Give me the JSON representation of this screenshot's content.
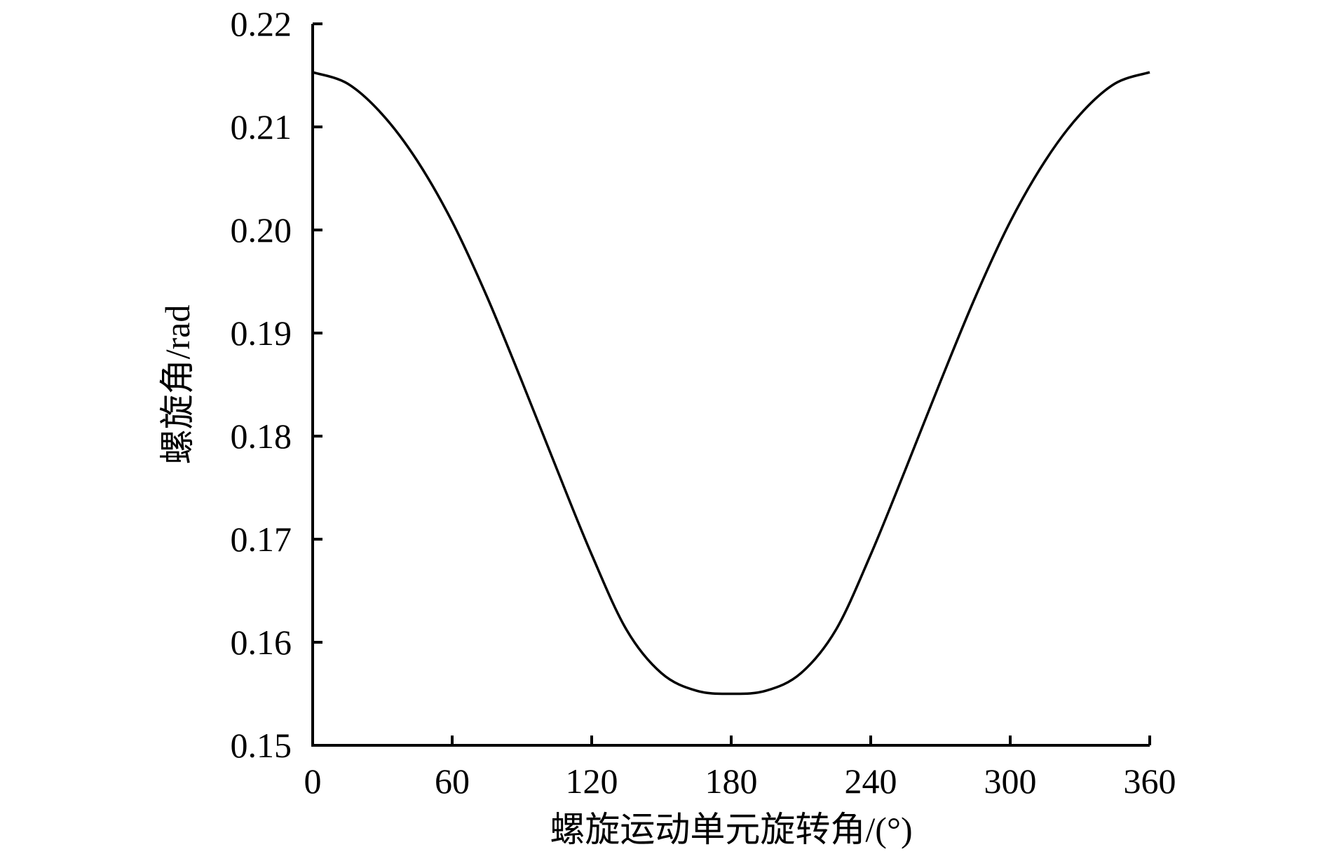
{
  "chart_data": {
    "type": "line",
    "title": "",
    "xlabel": "螺旋运动单元旋转角/(°)",
    "ylabel": "螺旋角/rad",
    "xlim": [
      0,
      360
    ],
    "ylim": [
      0.15,
      0.22
    ],
    "x_ticks": [
      0,
      60,
      120,
      180,
      240,
      300,
      360
    ],
    "x_tick_labels": [
      "0",
      "60",
      "120",
      "180",
      "240",
      "300",
      "360"
    ],
    "y_ticks": [
      0.15,
      0.16,
      0.17,
      0.18,
      0.19,
      0.2,
      0.21,
      0.22
    ],
    "y_tick_labels": [
      "0.15",
      "0.16",
      "0.17",
      "0.18",
      "0.19",
      "0.20",
      "0.21",
      "0.22"
    ],
    "grid": false,
    "legend": "none",
    "series": [
      {
        "x": [
          0,
          15,
          30,
          45,
          60,
          75,
          90,
          105,
          120,
          135,
          150,
          165,
          180,
          195,
          210,
          225,
          240,
          255,
          270,
          285,
          300,
          315,
          330,
          345,
          360
        ],
        "y": [
          0.2153,
          0.2142,
          0.2112,
          0.2067,
          0.2008,
          0.1935,
          0.1853,
          0.1768,
          0.1685,
          0.1612,
          0.157,
          0.1553,
          0.155,
          0.1553,
          0.157,
          0.1612,
          0.1685,
          0.1768,
          0.1853,
          0.1935,
          0.2008,
          0.2067,
          0.2112,
          0.2142,
          0.2153
        ]
      }
    ]
  }
}
